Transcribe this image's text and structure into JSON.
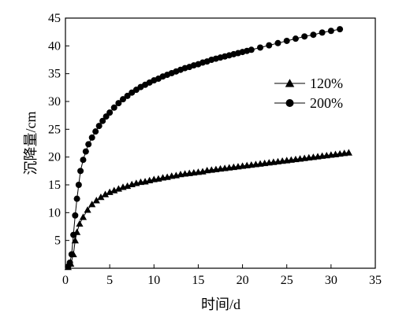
{
  "chart_data": {
    "type": "scatter",
    "xlabel": "时间/d",
    "ylabel": "沉降量/cm",
    "xlim": [
      0,
      35
    ],
    "ylim": [
      0,
      45
    ],
    "xticks": [
      "0",
      "5",
      "10",
      "15",
      "20",
      "25",
      "30",
      "35"
    ],
    "yticks": [
      "5",
      "10",
      "15",
      "20",
      "25",
      "30",
      "35",
      "40",
      "45"
    ],
    "grid": false,
    "legend_position": "top-right",
    "series": [
      {
        "name": "120%",
        "marker": "triangle",
        "color": "#000000",
        "x": [
          0.3,
          0.6,
          0.9,
          1.1,
          1.3,
          1.6,
          2.0,
          2.5,
          3.0,
          3.5,
          4.0,
          4.5,
          5.0,
          5.5,
          6.0,
          6.5,
          7.0,
          7.5,
          8.0,
          8.5,
          9.0,
          9.5,
          10.0,
          10.5,
          11.0,
          11.5,
          12.0,
          12.5,
          13.0,
          13.5,
          14.0,
          14.5,
          15.0,
          15.5,
          16.0,
          16.5,
          17.0,
          17.5,
          18.0,
          18.5,
          19.0,
          19.5,
          20.0,
          20.5,
          21.0,
          21.5,
          22.0,
          22.5,
          23.0,
          23.5,
          24.0,
          24.5,
          25.0,
          25.5,
          26.0,
          26.5,
          27.0,
          27.5,
          28.0,
          28.5,
          29.0,
          29.5,
          30.0,
          30.5,
          31.0,
          31.5,
          32.0
        ],
        "y": [
          0.2,
          0.8,
          2.5,
          5.0,
          6.5,
          8.0,
          9.2,
          10.5,
          11.5,
          12.2,
          12.8,
          13.3,
          13.7,
          14.0,
          14.3,
          14.6,
          14.8,
          15.1,
          15.3,
          15.5,
          15.6,
          15.8,
          16.0,
          16.1,
          16.3,
          16.4,
          16.6,
          16.7,
          16.9,
          17.0,
          17.1,
          17.2,
          17.3,
          17.4,
          17.6,
          17.7,
          17.8,
          17.9,
          18.0,
          18.1,
          18.2,
          18.3,
          18.4,
          18.5,
          18.6,
          18.7,
          18.8,
          18.9,
          19.0,
          19.1,
          19.2,
          19.3,
          19.4,
          19.5,
          19.6,
          19.7,
          19.8,
          19.9,
          20.0,
          20.1,
          20.2,
          20.3,
          20.4,
          20.5,
          20.6,
          20.7,
          20.8
        ]
      },
      {
        "name": "200%",
        "marker": "circle",
        "color": "#000000",
        "x": [
          0.3,
          0.5,
          0.7,
          0.9,
          1.1,
          1.3,
          1.5,
          1.7,
          2.0,
          2.3,
          2.6,
          3.0,
          3.4,
          3.8,
          4.2,
          4.6,
          5.0,
          5.5,
          6.0,
          6.5,
          7.0,
          7.5,
          8.0,
          8.5,
          9.0,
          9.5,
          10.0,
          10.5,
          11.0,
          11.5,
          12.0,
          12.5,
          13.0,
          13.5,
          14.0,
          14.5,
          15.0,
          15.5,
          16.0,
          16.5,
          17.0,
          17.5,
          18.0,
          18.5,
          19.0,
          19.5,
          20.0,
          20.5,
          21.0,
          22.0,
          23.0,
          24.0,
          25.0,
          26.0,
          27.0,
          28.0,
          29.0,
          30.0,
          31.0
        ],
        "y": [
          0.3,
          1.0,
          2.5,
          6.0,
          9.5,
          12.5,
          15.0,
          17.5,
          19.5,
          21.0,
          22.3,
          23.5,
          24.6,
          25.6,
          26.5,
          27.3,
          28.0,
          28.9,
          29.7,
          30.4,
          31.0,
          31.6,
          32.1,
          32.6,
          33.0,
          33.4,
          33.8,
          34.1,
          34.5,
          34.8,
          35.1,
          35.4,
          35.7,
          36.0,
          36.2,
          36.5,
          36.7,
          37.0,
          37.2,
          37.5,
          37.7,
          37.9,
          38.1,
          38.3,
          38.5,
          38.7,
          38.9,
          39.1,
          39.3,
          39.7,
          40.1,
          40.5,
          40.9,
          41.3,
          41.7,
          42.0,
          42.4,
          42.7,
          43.0
        ]
      }
    ]
  }
}
